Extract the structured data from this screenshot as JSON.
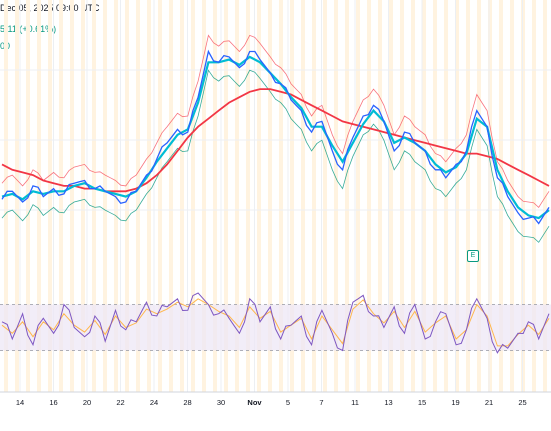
{
  "header": {
    "timestamp": "Dec 05, 2025 09:00 UTC",
    "price_change": "5.11 (+0.61%)",
    "indicator_value": "00"
  },
  "earnings_badge": {
    "label": "E"
  },
  "colors": {
    "price": "#2962ff",
    "ema_fast": "#00bcd4",
    "sma_slow": "#f23645",
    "band_upper": "#f7525f",
    "band_lower": "#089981",
    "rsi": "#7e57c2",
    "rsi_signal": "#ffb74d",
    "rsi_band_fill": "#ede7f6",
    "stripe": "#fff3e0",
    "grid": "#eceff3"
  },
  "chart_data": [
    {
      "type": "line",
      "title": "",
      "xlabel": "",
      "ylabel": "",
      "grid": true,
      "legend": "none",
      "x_ticks": [
        "14",
        "16",
        "20",
        "22",
        "24",
        "28",
        "30",
        "Nov",
        "5",
        "7",
        "11",
        "13",
        "15",
        "19",
        "21",
        "25"
      ],
      "y_labels_visible": false,
      "series": [
        {
          "values": [
            37,
            40,
            36,
            42,
            38,
            41,
            39,
            43,
            44,
            41,
            40,
            38,
            36,
            40,
            46,
            52,
            58,
            63,
            62,
            75,
            92,
            88,
            90,
            86,
            92,
            89,
            84,
            80,
            74,
            70,
            62,
            66,
            55,
            48,
            60,
            68,
            72,
            66,
            55,
            62,
            58,
            55,
            48,
            45,
            50,
            55,
            70,
            64,
            45,
            38,
            32,
            30,
            28,
            34
          ]
        },
        {
          "values": [
            38,
            39,
            37,
            40,
            39,
            40,
            40,
            42,
            43,
            41,
            40,
            39,
            38,
            40,
            45,
            51,
            56,
            61,
            63,
            73,
            88,
            88,
            89,
            87,
            90,
            88,
            84,
            80,
            75,
            71,
            64,
            64,
            57,
            51,
            58,
            65,
            70,
            66,
            58,
            60,
            58,
            55,
            50,
            47,
            49,
            54,
            67,
            64,
            48,
            40,
            34,
            31,
            30,
            33
          ]
        },
        {
          "values": [
            50,
            48,
            47,
            46,
            44,
            43,
            42,
            42,
            41,
            41,
            40,
            40,
            40,
            41,
            43,
            46,
            50,
            55,
            60,
            64,
            67,
            70,
            73,
            75,
            77,
            78,
            78,
            77,
            76,
            74,
            72,
            70,
            68,
            66,
            65,
            64,
            63,
            62,
            61,
            60,
            59,
            58,
            57,
            56,
            55,
            54,
            54,
            53,
            52,
            50,
            48,
            46,
            44,
            42
          ]
        }
      ]
    },
    {
      "type": "line",
      "title": "",
      "xlabel": "",
      "ylabel": "",
      "ylim": [
        0,
        100
      ],
      "band": [
        30,
        70
      ],
      "legend": "none",
      "series": [
        {
          "values": [
            55,
            40,
            62,
            35,
            58,
            45,
            70,
            50,
            42,
            60,
            38,
            65,
            48,
            55,
            72,
            60,
            68,
            75,
            65,
            80,
            70,
            62,
            58,
            45,
            75,
            55,
            68,
            40,
            52,
            60,
            35,
            65,
            45,
            30,
            72,
            78,
            60,
            50,
            68,
            45,
            70,
            40,
            55,
            62,
            35,
            48,
            75,
            58,
            28,
            32,
            45,
            55,
            40,
            62
          ]
        },
        {
          "values": [
            52,
            45,
            55,
            42,
            55,
            48,
            62,
            52,
            46,
            56,
            44,
            60,
            50,
            54,
            66,
            62,
            66,
            72,
            68,
            75,
            70,
            64,
            60,
            50,
            68,
            58,
            64,
            46,
            52,
            58,
            40,
            60,
            48,
            36,
            66,
            74,
            62,
            54,
            64,
            50,
            64,
            46,
            54,
            60,
            40,
            48,
            70,
            60,
            34,
            34,
            44,
            52,
            44,
            58
          ]
        }
      ]
    }
  ]
}
